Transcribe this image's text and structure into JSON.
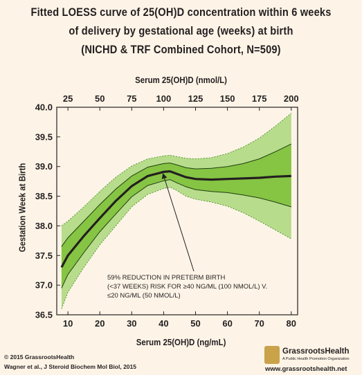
{
  "title_lines": [
    "Fitted LOESS curve of 25(OH)D concentration within 6 weeks",
    "of delivery by gestational age (weeks) at birth",
    "(NICHD & TRF Combined Cohort, N=509)"
  ],
  "colors": {
    "background": "#fdf4e7",
    "outer_band": "#b7dc8c",
    "inner_band": "#86c443",
    "curve": "#231f20",
    "band_edge": "#4b8f2a"
  },
  "chart_data": {
    "type": "line",
    "title": "Fitted LOESS curve of 25(OH)D concentration within 6 weeks of delivery by gestational age (weeks) at birth (NICHD & TRF Combined Cohort, N=509)",
    "xlabel": "Serum 25(OH)D (ng/mL)",
    "ylabel": "Gestation Week at Birth",
    "x2label": "Serum 25(OH)D (nmol/L)",
    "xlim": [
      6.5,
      82
    ],
    "ylim": [
      36.5,
      40.0
    ],
    "x_ticks": [
      10,
      20,
      30,
      40,
      50,
      60,
      70,
      80
    ],
    "y_ticks": [
      "36.5",
      "37.0",
      "37.5",
      "38.0",
      "38.5",
      "39.0",
      "39.5",
      "40.0"
    ],
    "x2_ticks": [
      25,
      50,
      75,
      100,
      125,
      150,
      175,
      200
    ],
    "x": [
      8,
      10,
      15,
      20,
      25,
      30,
      35,
      40,
      42,
      44,
      47,
      50,
      55,
      60,
      65,
      70,
      75,
      80
    ],
    "series": [
      {
        "role": "fit",
        "values": [
          37.3,
          37.5,
          37.83,
          38.13,
          38.42,
          38.67,
          38.84,
          38.91,
          38.92,
          38.88,
          38.82,
          38.79,
          38.78,
          38.79,
          38.8,
          38.81,
          38.83,
          38.84
        ]
      },
      {
        "role": "inner-upper",
        "values": [
          37.65,
          37.8,
          38.08,
          38.36,
          38.62,
          38.84,
          38.99,
          39.05,
          39.06,
          39.03,
          38.98,
          38.96,
          38.97,
          39.0,
          39.05,
          39.13,
          39.25,
          39.38
        ]
      },
      {
        "role": "inner-lower",
        "values": [
          36.95,
          37.18,
          37.55,
          37.9,
          38.2,
          38.49,
          38.68,
          38.76,
          38.78,
          38.73,
          38.66,
          38.61,
          38.58,
          38.56,
          38.52,
          38.47,
          38.4,
          38.32
        ]
      },
      {
        "role": "outer-upper",
        "values": [
          38.0,
          38.08,
          38.32,
          38.58,
          38.82,
          39.01,
          39.13,
          39.18,
          39.19,
          39.17,
          39.14,
          39.13,
          39.15,
          39.22,
          39.33,
          39.48,
          39.68,
          39.9
        ]
      },
      {
        "role": "outer-lower",
        "values": [
          36.6,
          36.88,
          37.3,
          37.68,
          38.0,
          38.32,
          38.53,
          38.63,
          38.65,
          38.6,
          38.5,
          38.45,
          38.4,
          38.33,
          38.22,
          38.08,
          37.93,
          37.78
        ]
      }
    ],
    "annotation": {
      "lines": [
        "59% REDUCTION IN PRETERM BIRTH",
        "(<37 WEEKS) RISK FOR ≥40 NG/ML (100 NMOL/L) V.",
        "≤20 NG/ML (50 NMOL/L)"
      ],
      "arrow_to": {
        "x": 40,
        "y": 38.88
      }
    },
    "grid": false
  },
  "footer": {
    "copyright": "© 2015 GrassrootsHealth",
    "citation": "Wagner et al., J Steroid Biochem Mol Biol, 2015"
  },
  "logo": {
    "name": "GrassrootsHealth",
    "tagline": "A Public Health Promotion Organization",
    "url": "www.grassrootshealth.net"
  }
}
